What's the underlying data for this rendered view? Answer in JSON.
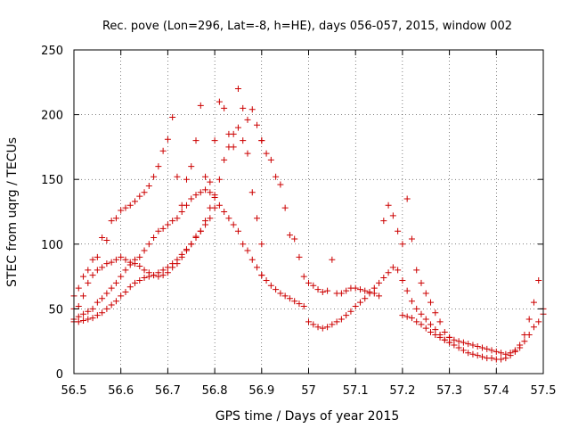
{
  "chart_data": {
    "type": "scatter",
    "title": "Rec. pove (Lon=296, Lat=-8, h=HE), days 056-057, 2015, window 002",
    "xlabel": "GPS time / Days of year 2015",
    "ylabel": "STEC from uqrg / TECUs",
    "xlim": [
      56.5,
      57.5
    ],
    "ylim": [
      0,
      250
    ],
    "x_ticks": [
      "56.5",
      "56.6",
      "56.7",
      "56.8",
      "56.9",
      "57",
      "57.1",
      "57.2",
      "57.3",
      "57.4",
      "57.5"
    ],
    "y_ticks": [
      "0",
      "50",
      "100",
      "150",
      "200",
      "250"
    ],
    "grid": true,
    "marker": "+",
    "color": "#cc0000",
    "series": [
      {
        "x": [
          56.5,
          56.51,
          56.52,
          56.53,
          56.54,
          56.55,
          56.56,
          56.57,
          56.58,
          56.59,
          56.6,
          56.61,
          56.62,
          56.63,
          56.64,
          56.65,
          56.66,
          56.67,
          56.68,
          56.69,
          56.7,
          56.71,
          56.72,
          56.73,
          56.74,
          56.75,
          56.76,
          56.77,
          56.78,
          56.79,
          56.8,
          56.81,
          56.82,
          56.83,
          56.84,
          56.85,
          56.86,
          56.87,
          56.88,
          56.89,
          56.9
        ],
        "y": [
          60,
          66,
          75,
          80,
          88,
          90,
          105,
          103,
          118,
          120,
          126,
          128,
          130,
          133,
          137,
          140,
          145,
          152,
          160,
          172,
          181,
          198,
          152,
          130,
          150,
          160,
          180,
          207,
          152,
          148,
          180,
          210,
          205,
          185,
          175,
          220,
          205,
          196,
          204,
          192,
          180
        ]
      },
      {
        "x": [
          56.9,
          56.91,
          56.92,
          56.93,
          56.94,
          56.95,
          56.96,
          56.97,
          56.98,
          56.99,
          57.0,
          57.01,
          57.02,
          57.03,
          57.04,
          57.05,
          57.06,
          57.07,
          57.08,
          57.09,
          57.1,
          57.11,
          57.12,
          57.13,
          57.14,
          57.15,
          57.16,
          57.17,
          57.18,
          57.19,
          57.2,
          57.21,
          57.22,
          57.23,
          57.24,
          57.25,
          57.26,
          57.27,
          57.28,
          57.29,
          57.3
        ],
        "y": [
          180,
          170,
          165,
          152,
          146,
          128,
          107,
          104,
          90,
          75,
          70,
          68,
          65,
          63,
          64,
          88,
          62,
          62,
          64,
          66,
          66,
          65,
          64,
          63,
          62,
          60,
          118,
          130,
          122,
          110,
          100,
          135,
          104,
          80,
          70,
          62,
          55,
          47,
          40,
          32,
          28
        ]
      },
      {
        "x": [
          57.3,
          57.31,
          57.32,
          57.33,
          57.34,
          57.35,
          57.36,
          57.37,
          57.38,
          57.39,
          57.4,
          57.41,
          57.42,
          57.43,
          57.44,
          57.45,
          57.46,
          57.47,
          57.48,
          57.49,
          57.5
        ],
        "y": [
          28,
          26,
          25,
          24,
          23,
          22,
          21,
          20,
          19,
          18,
          17,
          16,
          15,
          16,
          18,
          22,
          30,
          42,
          55,
          72,
          50
        ]
      },
      {
        "x": [
          56.5,
          56.51,
          56.52,
          56.53,
          56.54,
          56.55,
          56.56,
          56.57,
          56.58,
          56.59,
          56.6,
          56.61,
          56.62,
          56.63,
          56.64,
          56.65,
          56.66,
          56.67,
          56.68,
          56.69,
          56.7,
          56.71,
          56.72,
          56.73,
          56.74,
          56.75,
          56.76,
          56.77,
          56.78,
          56.79,
          56.8,
          56.81,
          56.82,
          56.83,
          56.84,
          56.85,
          56.86,
          56.87,
          56.88,
          56.89,
          56.9
        ],
        "y": [
          50,
          52,
          60,
          70,
          76,
          80,
          82,
          85,
          86,
          88,
          90,
          88,
          86,
          85,
          83,
          80,
          78,
          76,
          75,
          76,
          78,
          82,
          85,
          90,
          95,
          100,
          105,
          110,
          118,
          128,
          138,
          150,
          165,
          175,
          185,
          190,
          180,
          170,
          140,
          120,
          100
        ]
      },
      {
        "x": [
          56.5,
          56.51,
          56.52,
          56.53,
          56.54,
          56.55,
          56.56,
          56.57,
          56.58,
          56.59,
          56.6,
          56.61,
          56.62,
          56.63,
          56.64,
          56.65,
          56.66,
          56.67,
          56.68,
          56.69,
          56.7,
          56.71,
          56.72,
          56.73,
          56.74,
          56.75,
          56.76,
          56.77,
          56.78,
          56.79,
          56.8,
          56.81,
          56.82,
          56.83,
          56.84,
          56.85,
          56.86,
          56.87,
          56.88,
          56.89,
          56.9
        ],
        "y": [
          42,
          44,
          46,
          48,
          50,
          55,
          58,
          62,
          66,
          70,
          75,
          80,
          84,
          88,
          90,
          95,
          100,
          105,
          110,
          112,
          115,
          118,
          120,
          125,
          130,
          135,
          138,
          140,
          142,
          140,
          136,
          130,
          125,
          120,
          115,
          110,
          100,
          95,
          88,
          82,
          76
        ]
      },
      {
        "x": [
          56.5,
          56.51,
          56.52,
          56.53,
          56.54,
          56.55,
          56.56,
          56.57,
          56.58,
          56.59,
          56.6,
          56.61,
          56.62,
          56.63,
          56.64,
          56.65,
          56.66,
          56.67,
          56.68,
          56.69,
          56.7,
          56.71,
          56.72,
          56.73,
          56.74,
          56.75,
          56.76,
          56.77,
          56.78,
          56.79,
          56.8
        ],
        "y": [
          40,
          40,
          41,
          42,
          43,
          45,
          47,
          50,
          53,
          56,
          60,
          63,
          67,
          70,
          72,
          74,
          75,
          76,
          78,
          80,
          82,
          85,
          88,
          92,
          96,
          100,
          106,
          110,
          115,
          120,
          128
        ]
      },
      {
        "x": [
          56.9,
          56.91,
          56.92,
          56.93,
          56.94,
          56.95,
          56.96,
          56.97,
          56.98,
          56.99,
          57.0,
          57.01,
          57.02,
          57.03,
          57.04,
          57.05,
          57.06,
          57.07,
          57.08,
          57.09,
          57.1,
          57.11,
          57.12,
          57.13,
          57.14,
          57.15,
          57.16,
          57.17,
          57.18,
          57.19,
          57.2,
          57.21,
          57.22,
          57.23,
          57.24,
          57.25,
          57.26,
          57.27,
          57.28,
          57.29,
          57.3
        ],
        "y": [
          76,
          72,
          68,
          65,
          62,
          60,
          58,
          56,
          54,
          52,
          40,
          38,
          36,
          35,
          36,
          38,
          40,
          42,
          45,
          48,
          52,
          55,
          58,
          62,
          66,
          70,
          74,
          78,
          82,
          80,
          72,
          64,
          56,
          50,
          46,
          42,
          38,
          34,
          30,
          26,
          24
        ]
      },
      {
        "x": [
          57.2,
          57.21,
          57.22,
          57.23,
          57.24,
          57.25,
          57.26,
          57.27,
          57.28,
          57.29,
          57.3,
          57.31,
          57.32,
          57.33,
          57.34,
          57.35,
          57.36,
          57.37,
          57.38,
          57.39,
          57.4,
          57.41,
          57.42,
          57.43,
          57.44,
          57.45,
          57.46,
          57.47,
          57.48,
          57.49,
          57.5
        ],
        "y": [
          45,
          44,
          43,
          40,
          38,
          35,
          32,
          30,
          28,
          26,
          24,
          22,
          20,
          18,
          16,
          15,
          14,
          13,
          12,
          12,
          11,
          11,
          12,
          14,
          17,
          20,
          25,
          30,
          36,
          40,
          46
        ]
      }
    ]
  }
}
